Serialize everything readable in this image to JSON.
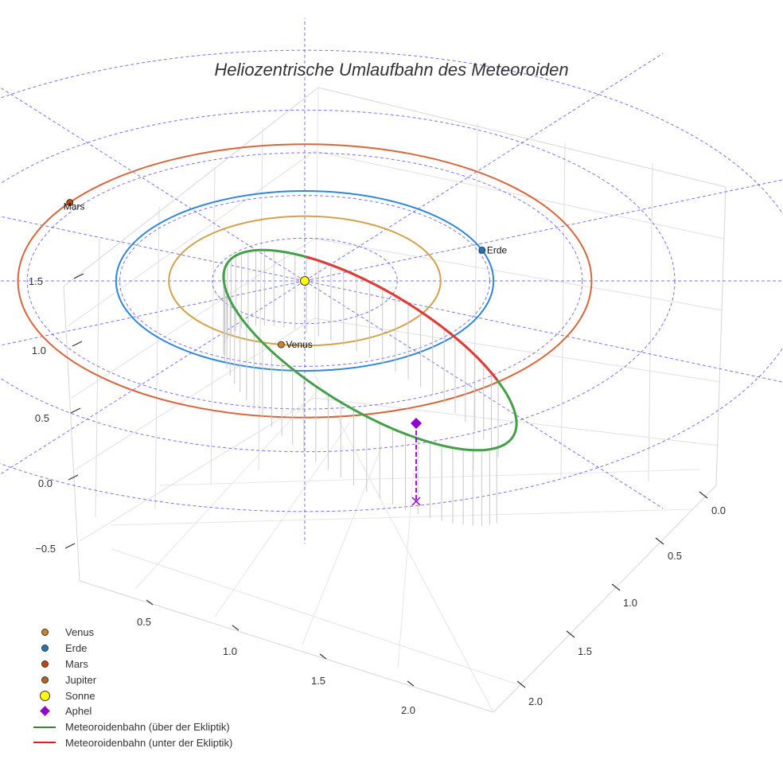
{
  "chart_data": {
    "type": "line",
    "title": "Heliozentrische Umlaufbahn des Meteoroiden",
    "subtype": "3d-orbit",
    "axes": {
      "x": {
        "ticks": [
          "0.5",
          "1.0",
          "1.5",
          "2.0"
        ]
      },
      "y": {
        "ticks": [
          "0.0",
          "0.5",
          "1.0",
          "1.5",
          "2.0"
        ]
      },
      "z": {
        "ticks": [
          "−0.5",
          "0.0",
          "0.5",
          "1.0",
          "1.5"
        ]
      }
    },
    "planet_orbits": [
      {
        "name": "Venus",
        "semi_major_au": 0.72,
        "color": "#d4a24c"
      },
      {
        "name": "Erde",
        "semi_major_au": 1.0,
        "color": "#2e86de"
      },
      {
        "name": "Mars",
        "semi_major_au": 1.52,
        "color": "#d9653b"
      }
    ],
    "planets": [
      {
        "name": "Venus",
        "label": "Venus",
        "color": "#d07f2a",
        "angle_deg": 100
      },
      {
        "name": "Erde",
        "label": "Erde",
        "color": "#1f77b4",
        "angle_deg": -20
      },
      {
        "name": "Mars",
        "label": "Mars",
        "color": "#c1440e",
        "angle_deg": 215
      },
      {
        "name": "Jupiter",
        "label": "",
        "color": "#b5651d",
        "angle_deg": null
      }
    ],
    "sun": {
      "name": "Sonne",
      "color": "#ffff00"
    },
    "meteoroid": {
      "above_ecliptic_color": "#43a047",
      "below_ecliptic_color": "#e53935",
      "aphelion": {
        "name": "Aphel",
        "color": "#9400d3"
      }
    },
    "legend": [
      {
        "label": "Venus",
        "symbol": "dot",
        "color": "#d07f2a"
      },
      {
        "label": "Erde",
        "symbol": "dot",
        "color": "#1f77b4"
      },
      {
        "label": "Mars",
        "symbol": "dot",
        "color": "#c1440e"
      },
      {
        "label": "Jupiter",
        "symbol": "dot",
        "color": "#b5651d"
      },
      {
        "label": "Sonne",
        "symbol": "big-dot",
        "color": "#ffff00"
      },
      {
        "label": "Aphel",
        "symbol": "diamond",
        "color": "#9400d3"
      },
      {
        "label": "Meteoroidenbahn (über der Ekliptik)",
        "symbol": "line",
        "color": "#2e8b2e"
      },
      {
        "label": "Meteoroidenbahn (unter der Ekliptik)",
        "symbol": "line",
        "color": "#e02020"
      }
    ]
  }
}
